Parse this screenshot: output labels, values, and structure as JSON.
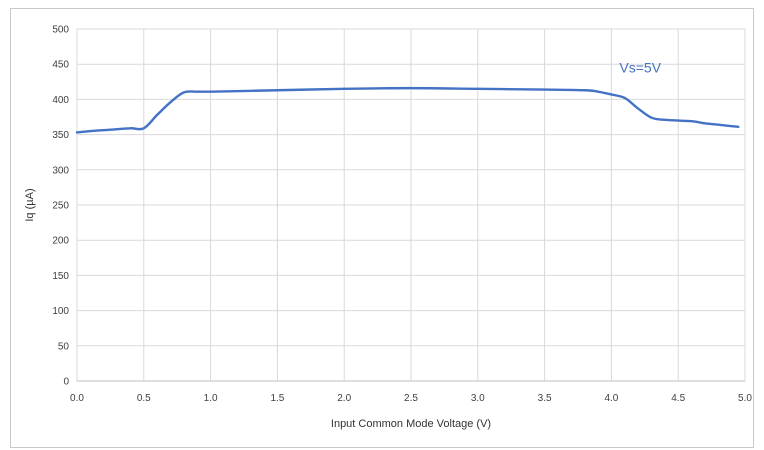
{
  "chart_data": {
    "type": "line",
    "title": "",
    "xlabel": "Input Common Mode Voltage (V)",
    "ylabel": "Iq (µA)",
    "xlim": [
      0,
      5
    ],
    "ylim": [
      0,
      500
    ],
    "xticks": [
      "0.0",
      "0.5",
      "1.0",
      "1.5",
      "2.0",
      "2.5",
      "3.0",
      "3.5",
      "4.0",
      "4.5",
      "5.0"
    ],
    "yticks": [
      "0",
      "50",
      "100",
      "150",
      "200",
      "250",
      "300",
      "350",
      "400",
      "450",
      "500"
    ],
    "grid": "vertical and horizontal",
    "legend": "none",
    "annotation": "Vs=5V",
    "line_color": "#4472c4",
    "series": [
      {
        "x": [
          0.0,
          0.1,
          0.25,
          0.4,
          0.5,
          0.6,
          0.7,
          0.8,
          0.9,
          1.0,
          1.5,
          2.0,
          2.5,
          3.0,
          3.5,
          3.8,
          3.9,
          4.0,
          4.1,
          4.2,
          4.3,
          4.4,
          4.6,
          4.7,
          4.8,
          4.95
        ],
        "y": [
          353,
          355,
          357,
          359,
          359,
          378,
          396,
          410,
          411,
          411,
          413,
          415,
          416,
          415,
          414,
          413,
          411,
          407,
          402,
          387,
          374,
          371,
          369,
          366,
          364,
          361
        ]
      }
    ]
  }
}
